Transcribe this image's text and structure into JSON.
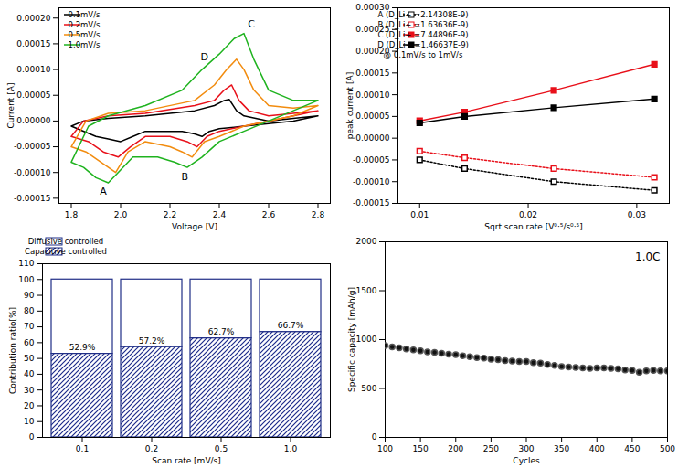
{
  "chart_data": [
    {
      "type": "line",
      "xlabel": "Voltage [V]",
      "ylabel": "Current [A]",
      "xlim": [
        1.75,
        2.85
      ],
      "xticks": [
        1.8,
        {
          "value": 2.0,
          "label": "2.0"
        },
        2.2,
        2.4,
        2.6,
        2.8
      ],
      "ylim": [
        -0.00016,
        0.00022
      ],
      "yticks": [
        {
          "value": -0.00015,
          "label": "-0.00015"
        },
        {
          "value": -0.0001,
          "label": "-0.00010"
        },
        {
          "value": -5e-05,
          "label": "-0.00005"
        },
        {
          "value": 0,
          "label": "0.00000"
        },
        {
          "value": 5e-05,
          "label": "0.00005"
        },
        {
          "value": 0.0001,
          "label": "0.00010"
        },
        {
          "value": 0.00015,
          "label": "0.00015"
        },
        {
          "value": 0.0002,
          "label": "0.00020"
        }
      ],
      "legend": "top-left",
      "grid": false,
      "series": [
        {
          "name": "0.1mV/s",
          "color": "#000000",
          "line_style": "solid",
          "x": [
            1.8,
            1.85,
            1.95,
            2.1,
            2.3,
            2.38,
            2.42,
            2.44,
            2.47,
            2.5,
            2.6,
            2.7,
            2.8,
            2.7,
            2.6,
            2.5,
            2.4,
            2.36,
            2.33,
            2.3,
            2.25,
            2.1,
            2.05,
            2.0,
            1.95,
            1.9,
            1.8
          ],
          "values": [
            -1e-05,
            0.0,
            5e-06,
            1e-05,
            2e-05,
            3e-05,
            4e-05,
            4.2e-05,
            2e-05,
            1e-05,
            0.0,
            5e-06,
            1e-05,
            0.0,
            -5e-06,
            -1e-05,
            -1.5e-05,
            -2e-05,
            -3e-05,
            -2.5e-05,
            -2e-05,
            -2e-05,
            -3e-05,
            -4e-05,
            -3.5e-05,
            -3e-05,
            -1e-05
          ]
        },
        {
          "name": "0.2mV/s",
          "color": "#e8101a",
          "line_style": "solid",
          "x": [
            1.8,
            1.85,
            1.95,
            2.1,
            2.3,
            2.38,
            2.42,
            2.45,
            2.48,
            2.52,
            2.6,
            2.7,
            2.8,
            2.7,
            2.6,
            2.5,
            2.4,
            2.35,
            2.31,
            2.27,
            2.2,
            2.1,
            2.04,
            1.99,
            1.93,
            1.87,
            1.8
          ],
          "values": [
            -3e-05,
            0.0,
            1e-05,
            1.5e-05,
            3e-05,
            4e-05,
            6e-05,
            7e-05,
            4e-05,
            2e-05,
            1e-05,
            1.5e-05,
            2e-05,
            1e-05,
            0.0,
            -1e-05,
            -2e-05,
            -3e-05,
            -5e-05,
            -4e-05,
            -3e-05,
            -3e-05,
            -5e-05,
            -7e-05,
            -6e-05,
            -4e-05,
            -3e-05
          ]
        },
        {
          "name": "0.5mV/s",
          "color": "#f28c0f",
          "line_style": "solid",
          "x": [
            1.8,
            1.86,
            1.95,
            2.1,
            2.3,
            2.38,
            2.43,
            2.47,
            2.5,
            2.54,
            2.6,
            2.7,
            2.8,
            2.7,
            2.6,
            2.5,
            2.4,
            2.34,
            2.29,
            2.25,
            2.2,
            2.1,
            2.03,
            1.98,
            1.92,
            1.86,
            1.8
          ],
          "values": [
            -5e-05,
            0.0,
            1.5e-05,
            2e-05,
            4e-05,
            7e-05,
            0.0001,
            0.00012,
            0.0001,
            6e-05,
            3e-05,
            2.5e-05,
            3e-05,
            1e-05,
            0.0,
            -1e-05,
            -3e-05,
            -4e-05,
            -7e-05,
            -6e-05,
            -5e-05,
            -4e-05,
            -6e-05,
            -0.0001,
            -8e-05,
            -6e-05,
            -5e-05
          ]
        },
        {
          "name": "1.0mV/s",
          "color": "#1fb31f",
          "line_style": "solid",
          "x": [
            1.8,
            1.87,
            1.95,
            2.1,
            2.25,
            2.33,
            2.4,
            2.46,
            2.5,
            2.54,
            2.6,
            2.7,
            2.8,
            2.7,
            2.6,
            2.5,
            2.4,
            2.33,
            2.27,
            2.22,
            2.15,
            2.05,
            1.99,
            1.95,
            1.9,
            1.85,
            1.8
          ],
          "values": [
            -8e-05,
            -1e-05,
            1e-05,
            3e-05,
            6e-05,
            0.0001,
            0.00013,
            0.00016,
            0.00017,
            0.00012,
            6e-05,
            4e-05,
            4e-05,
            2e-05,
            0.0,
            -2e-05,
            -4e-05,
            -7e-05,
            -9e-05,
            -8e-05,
            -7e-05,
            -7e-05,
            -0.0001,
            -0.00012,
            -0.00011,
            -9e-05,
            -8e-05
          ]
        }
      ],
      "annotations": [
        {
          "text": "A",
          "x": 1.93,
          "y": -0.000137
        },
        {
          "text": "B",
          "x": 2.26,
          "y": -0.000108
        },
        {
          "text": "C",
          "x": 2.53,
          "y": 0.000188
        },
        {
          "text": "D",
          "x": 2.34,
          "y": 0.000125
        }
      ]
    },
    {
      "type": "line",
      "xlabel": "Sqrt scan rate [V⁰·⁵/s⁰·⁵]",
      "ylabel": "peak current [A]",
      "xlim": [
        0.008,
        0.033
      ],
      "xticks": [
        0.01,
        0.02,
        0.03
      ],
      "ylim": [
        -0.00015,
        0.0003
      ],
      "yticks": [
        {
          "value": -0.00015,
          "label": "-0.00015"
        },
        {
          "value": -0.0001,
          "label": "-0.00010"
        },
        {
          "value": -5e-05,
          "label": "-0.00005"
        },
        {
          "value": 0,
          "label": "0.00000"
        },
        {
          "value": 5e-05,
          "label": "0.00005"
        },
        {
          "value": 0.0001,
          "label": "0.00010"
        },
        {
          "value": 0.00015,
          "label": "0.00015"
        },
        {
          "value": 0.0002,
          "label": "0.00020"
        },
        {
          "value": 0.00025,
          "label": "0.00025"
        },
        {
          "value": 0.0003,
          "label": "0.00030"
        }
      ],
      "legend": "top-left",
      "grid": false,
      "annotation": "@ 0.1mV/s to 1mV/s",
      "x": [
        0.01,
        0.01414,
        0.02236,
        0.03162
      ],
      "series": [
        {
          "name": "A (D_Li+ =2.14308E-9)",
          "color": "#000000",
          "line_style": "dotted",
          "marker": "open_square",
          "values": [
            -5e-05,
            -7e-05,
            -0.0001,
            -0.00012
          ]
        },
        {
          "name": "B (D_Li+ =1.63636E-9)",
          "color": "#e8101a",
          "line_style": "dotted",
          "marker": "open_square",
          "values": [
            -3e-05,
            -4.5e-05,
            -7e-05,
            -9e-05
          ]
        },
        {
          "name": "C (D_Li+ =7.44896E-9)",
          "color": "#e8101a",
          "line_style": "solid",
          "marker": "square",
          "values": [
            4e-05,
            6e-05,
            0.00011,
            0.00017
          ]
        },
        {
          "name": "D (D_Li+ =1.46637E-9)",
          "color": "#000000",
          "line_style": "solid",
          "marker": "square",
          "values": [
            3.5e-05,
            5e-05,
            7e-05,
            9e-05
          ]
        }
      ]
    },
    {
      "type": "bar",
      "stacked": true,
      "xlabel": "Scan rate [mV/s]",
      "ylabel": "Contribution ratio[%]",
      "categories": [
        "0.1",
        "0.2",
        "0.5",
        "1.0"
      ],
      "ylim": [
        0,
        110
      ],
      "yticks": [
        0,
        10,
        20,
        30,
        40,
        50,
        60,
        70,
        80,
        90,
        100,
        110
      ],
      "legend": "top",
      "grid": false,
      "series": [
        {
          "name": "Diffusive controlled",
          "color": "#ffffff",
          "values": [
            47.1,
            42.8,
            37.3,
            33.3
          ]
        },
        {
          "name": "Capacitive controlled",
          "color": "#1c2a8a",
          "values": [
            52.9,
            57.2,
            62.7,
            66.7
          ],
          "data_labels": true,
          "value_labels": [
            "52.9%",
            "57.2%",
            "62.7%",
            "66.7%"
          ]
        }
      ]
    },
    {
      "type": "scatter",
      "xlabel": "Cycles",
      "ylabel": "Specific capacity [mAh/g]",
      "annotation": "1.0C",
      "xlim": [
        100,
        500
      ],
      "xticks": [
        100,
        150,
        200,
        250,
        300,
        350,
        400,
        450,
        500
      ],
      "ylim": [
        0,
        2000
      ],
      "yticks": [
        0,
        500,
        1000,
        1500,
        2000
      ],
      "grid": false,
      "x": [
        100,
        110,
        120,
        130,
        140,
        150,
        160,
        170,
        180,
        190,
        200,
        210,
        220,
        230,
        240,
        250,
        260,
        270,
        280,
        290,
        300,
        310,
        320,
        330,
        340,
        350,
        360,
        370,
        380,
        390,
        400,
        410,
        420,
        430,
        440,
        450,
        460,
        470,
        480,
        490,
        500
      ],
      "series": [
        {
          "name": "Specific capacity",
          "color": "#111111",
          "marker": "circle",
          "values": [
            940,
            925,
            915,
            905,
            895,
            885,
            875,
            870,
            860,
            850,
            845,
            835,
            825,
            815,
            810,
            800,
            795,
            785,
            780,
            775,
            775,
            765,
            760,
            745,
            735,
            725,
            720,
            715,
            710,
            705,
            710,
            710,
            705,
            700,
            690,
            685,
            665,
            680,
            685,
            680,
            680
          ]
        }
      ]
    }
  ]
}
